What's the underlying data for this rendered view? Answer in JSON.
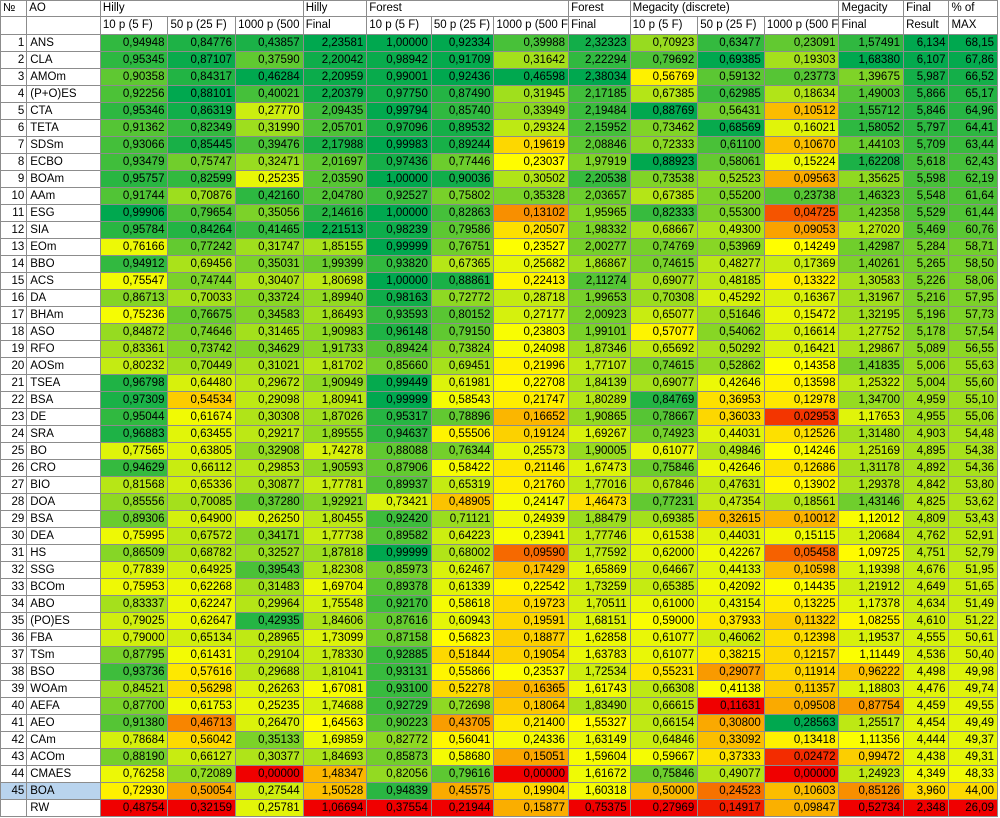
{
  "headers": {
    "no": "№",
    "ao": "AO",
    "hilly": "Hilly",
    "hilly_final_1": "Hilly",
    "hilly_final_2": "Final",
    "forest": "Forest",
    "forest_final_1": "Forest",
    "forest_final_2": "Final",
    "megacity": "Megacity (discrete)",
    "megacity_final_1": "Megacity",
    "megacity_final_2": "Final",
    "final_result_1": "Final",
    "final_result_2": "Result",
    "pct_max_1": "% of",
    "pct_max_2": "MAX",
    "sub": [
      "10 p (5 F)",
      "50 p (25 F)",
      "1000 p (500 F)"
    ]
  },
  "rows": [
    {
      "n": "1",
      "ao": "ANS",
      "v": [
        "0,94948",
        "0,84776",
        "0,43857",
        "2,23581",
        "1,00000",
        "0,92334",
        "0,39988",
        "2,32323",
        "0,70923",
        "0,63477",
        "0,23091",
        "1,57491",
        "6,134",
        "68,15"
      ]
    },
    {
      "n": "2",
      "ao": "CLA",
      "v": [
        "0,95345",
        "0,87107",
        "0,37590",
        "2,20042",
        "0,98942",
        "0,91709",
        "0,31642",
        "2,22294",
        "0,79692",
        "0,69385",
        "0,19303",
        "1,68380",
        "6,107",
        "67,86"
      ]
    },
    {
      "n": "3",
      "ao": "AMOm",
      "v": [
        "0,90358",
        "0,84317",
        "0,46284",
        "2,20959",
        "0,99001",
        "0,92436",
        "0,46598",
        "2,38034",
        "0,56769",
        "0,59132",
        "0,23773",
        "1,39675",
        "5,987",
        "66,52"
      ]
    },
    {
      "n": "4",
      "ao": "(P+O)ES",
      "v": [
        "0,92256",
        "0,88101",
        "0,40021",
        "2,20379",
        "0,97750",
        "0,87490",
        "0,31945",
        "2,17185",
        "0,67385",
        "0,62985",
        "0,18634",
        "1,49003",
        "5,866",
        "65,17"
      ]
    },
    {
      "n": "5",
      "ao": "CTA",
      "v": [
        "0,95346",
        "0,86319",
        "0,27770",
        "2,09435",
        "0,99794",
        "0,85740",
        "0,33949",
        "2,19484",
        "0,88769",
        "0,56431",
        "0,10512",
        "1,55712",
        "5,846",
        "64,96"
      ]
    },
    {
      "n": "6",
      "ao": "TETA",
      "v": [
        "0,91362",
        "0,82349",
        "0,31990",
        "2,05701",
        "0,97096",
        "0,89532",
        "0,29324",
        "2,15952",
        "0,73462",
        "0,68569",
        "0,16021",
        "1,58052",
        "5,797",
        "64,41"
      ]
    },
    {
      "n": "7",
      "ao": "SDSm",
      "v": [
        "0,93066",
        "0,85445",
        "0,39476",
        "2,17988",
        "0,99983",
        "0,89244",
        "0,19619",
        "2,08846",
        "0,72333",
        "0,61100",
        "0,10670",
        "1,44103",
        "5,709",
        "63,44"
      ]
    },
    {
      "n": "8",
      "ao": "ECBO",
      "v": [
        "0,93479",
        "0,75747",
        "0,32471",
        "2,01697",
        "0,97436",
        "0,77446",
        "0,23037",
        "1,97919",
        "0,88923",
        "0,58061",
        "0,15224",
        "1,62208",
        "5,618",
        "62,43"
      ]
    },
    {
      "n": "9",
      "ao": "BOAm",
      "v": [
        "0,95757",
        "0,82599",
        "0,25235",
        "2,03590",
        "1,00000",
        "0,90036",
        "0,30502",
        "2,20538",
        "0,73538",
        "0,52523",
        "0,09563",
        "1,35625",
        "5,598",
        "62,19"
      ]
    },
    {
      "n": "10",
      "ao": "AAm",
      "v": [
        "0,91744",
        "0,70876",
        "0,42160",
        "2,04780",
        "0,92527",
        "0,75802",
        "0,35328",
        "2,03657",
        "0,67385",
        "0,55200",
        "0,23738",
        "1,46323",
        "5,548",
        "61,64"
      ]
    },
    {
      "n": "11",
      "ao": "ESG",
      "v": [
        "0,99906",
        "0,79654",
        "0,35056",
        "2,14616",
        "1,00000",
        "0,82863",
        "0,13102",
        "1,95965",
        "0,82333",
        "0,55300",
        "0,04725",
        "1,42358",
        "5,529",
        "61,44"
      ]
    },
    {
      "n": "12",
      "ao": "SIA",
      "v": [
        "0,95784",
        "0,84264",
        "0,41465",
        "2,21513",
        "0,98239",
        "0,79586",
        "0,20507",
        "1,98332",
        "0,68667",
        "0,49300",
        "0,09053",
        "1,27020",
        "5,469",
        "60,76"
      ]
    },
    {
      "n": "13",
      "ao": "EOm",
      "v": [
        "0,76166",
        "0,77242",
        "0,31747",
        "1,85155",
        "0,99999",
        "0,76751",
        "0,23527",
        "2,00277",
        "0,74769",
        "0,53969",
        "0,14249",
        "1,42987",
        "5,284",
        "58,71"
      ]
    },
    {
      "n": "14",
      "ao": "BBO",
      "v": [
        "0,94912",
        "0,69456",
        "0,35031",
        "1,99399",
        "0,93820",
        "0,67365",
        "0,25682",
        "1,86867",
        "0,74615",
        "0,48277",
        "0,17369",
        "1,40261",
        "5,265",
        "58,50"
      ]
    },
    {
      "n": "15",
      "ao": "ACS",
      "v": [
        "0,75547",
        "0,74744",
        "0,30407",
        "1,80698",
        "1,00000",
        "0,88861",
        "0,22413",
        "2,11274",
        "0,69077",
        "0,48185",
        "0,13322",
        "1,30583",
        "5,226",
        "58,06"
      ]
    },
    {
      "n": "16",
      "ao": "DA",
      "v": [
        "0,86713",
        "0,70033",
        "0,33724",
        "1,89940",
        "0,98163",
        "0,72772",
        "0,28718",
        "1,99653",
        "0,70308",
        "0,45292",
        "0,16367",
        "1,31967",
        "5,216",
        "57,95"
      ]
    },
    {
      "n": "17",
      "ao": "BHAm",
      "v": [
        "0,75236",
        "0,76675",
        "0,34583",
        "1,86493",
        "0,93593",
        "0,80152",
        "0,27177",
        "2,00923",
        "0,65077",
        "0,51646",
        "0,15472",
        "1,32195",
        "5,196",
        "57,73"
      ]
    },
    {
      "n": "18",
      "ao": "ASO",
      "v": [
        "0,84872",
        "0,74646",
        "0,31465",
        "1,90983",
        "0,96148",
        "0,79150",
        "0,23803",
        "1,99101",
        "0,57077",
        "0,54062",
        "0,16614",
        "1,27752",
        "5,178",
        "57,54"
      ]
    },
    {
      "n": "19",
      "ao": "RFO",
      "v": [
        "0,83361",
        "0,73742",
        "0,34629",
        "1,91733",
        "0,89424",
        "0,73824",
        "0,24098",
        "1,87346",
        "0,65692",
        "0,50292",
        "0,16421",
        "1,29867",
        "5,089",
        "56,55"
      ]
    },
    {
      "n": "20",
      "ao": "AOSm",
      "v": [
        "0,80232",
        "0,70449",
        "0,31021",
        "1,81702",
        "0,85660",
        "0,69451",
        "0,21996",
        "1,77107",
        "0,74615",
        "0,52862",
        "0,14358",
        "1,41835",
        "5,006",
        "55,63"
      ]
    },
    {
      "n": "21",
      "ao": "TSEA",
      "v": [
        "0,96798",
        "0,64480",
        "0,29672",
        "1,90949",
        "0,99449",
        "0,61981",
        "0,22708",
        "1,84139",
        "0,69077",
        "0,42646",
        "0,13598",
        "1,25322",
        "5,004",
        "55,60"
      ]
    },
    {
      "n": "22",
      "ao": "BSA",
      "v": [
        "0,97309",
        "0,54534",
        "0,29098",
        "1,80941",
        "0,99999",
        "0,58543",
        "0,21747",
        "1,80289",
        "0,84769",
        "0,36953",
        "0,12978",
        "1,34700",
        "4,959",
        "55,10"
      ]
    },
    {
      "n": "23",
      "ao": "DE",
      "v": [
        "0,95044",
        "0,61674",
        "0,30308",
        "1,87026",
        "0,95317",
        "0,78896",
        "0,16652",
        "1,90865",
        "0,78667",
        "0,36033",
        "0,02953",
        "1,17653",
        "4,955",
        "55,06"
      ]
    },
    {
      "n": "24",
      "ao": "SRA",
      "v": [
        "0,96883",
        "0,63455",
        "0,29217",
        "1,89555",
        "0,94637",
        "0,55506",
        "0,19124",
        "1,69267",
        "0,74923",
        "0,44031",
        "0,12526",
        "1,31480",
        "4,903",
        "54,48"
      ]
    },
    {
      "n": "25",
      "ao": "BO",
      "v": [
        "0,77565",
        "0,63805",
        "0,32908",
        "1,74278",
        "0,88088",
        "0,76344",
        "0,25573",
        "1,90005",
        "0,61077",
        "0,49846",
        "0,14246",
        "1,25169",
        "4,895",
        "54,38"
      ]
    },
    {
      "n": "26",
      "ao": "CRO",
      "v": [
        "0,94629",
        "0,66112",
        "0,29853",
        "1,90593",
        "0,87906",
        "0,58422",
        "0,21146",
        "1,67473",
        "0,75846",
        "0,42646",
        "0,12686",
        "1,31178",
        "4,892",
        "54,36"
      ]
    },
    {
      "n": "27",
      "ao": "BIO",
      "v": [
        "0,81568",
        "0,65336",
        "0,30877",
        "1,77781",
        "0,89937",
        "0,65319",
        "0,21760",
        "1,77016",
        "0,67846",
        "0,47631",
        "0,13902",
        "1,29378",
        "4,842",
        "53,80"
      ]
    },
    {
      "n": "28",
      "ao": "DOA",
      "v": [
        "0,85556",
        "0,70085",
        "0,37280",
        "1,92921",
        "0,73421",
        "0,48905",
        "0,24147",
        "1,46473",
        "0,77231",
        "0,47354",
        "0,18561",
        "1,43146",
        "4,825",
        "53,62"
      ]
    },
    {
      "n": "29",
      "ao": "BSA",
      "v": [
        "0,89306",
        "0,64900",
        "0,26250",
        "1,80455",
        "0,92420",
        "0,71121",
        "0,24939",
        "1,88479",
        "0,69385",
        "0,32615",
        "0,10012",
        "1,12012",
        "4,809",
        "53,43"
      ]
    },
    {
      "n": "30",
      "ao": "DEA",
      "v": [
        "0,75995",
        "0,67572",
        "0,34171",
        "1,77738",
        "0,89582",
        "0,64223",
        "0,23941",
        "1,77746",
        "0,61538",
        "0,44031",
        "0,15115",
        "1,20684",
        "4,762",
        "52,91"
      ]
    },
    {
      "n": "31",
      "ao": "HS",
      "v": [
        "0,86509",
        "0,68782",
        "0,32527",
        "1,87818",
        "0,99999",
        "0,68002",
        "0,09590",
        "1,77592",
        "0,62000",
        "0,42267",
        "0,05458",
        "1,09725",
        "4,751",
        "52,79"
      ]
    },
    {
      "n": "32",
      "ao": "SSG",
      "v": [
        "0,77839",
        "0,64925",
        "0,39543",
        "1,82308",
        "0,85973",
        "0,62467",
        "0,17429",
        "1,65869",
        "0,64667",
        "0,44133",
        "0,10598",
        "1,19398",
        "4,676",
        "51,95"
      ]
    },
    {
      "n": "33",
      "ao": "BCOm",
      "v": [
        "0,75953",
        "0,62268",
        "0,31483",
        "1,69704",
        "0,89378",
        "0,61339",
        "0,22542",
        "1,73259",
        "0,65385",
        "0,42092",
        "0,14435",
        "1,21912",
        "4,649",
        "51,65"
      ]
    },
    {
      "n": "34",
      "ao": "ABO",
      "v": [
        "0,83337",
        "0,62247",
        "0,29964",
        "1,75548",
        "0,92170",
        "0,58618",
        "0,19723",
        "1,70511",
        "0,61000",
        "0,43154",
        "0,13225",
        "1,17378",
        "4,634",
        "51,49"
      ]
    },
    {
      "n": "35",
      "ao": "(PO)ES",
      "v": [
        "0,79025",
        "0,62647",
        "0,42935",
        "1,84606",
        "0,87616",
        "0,60943",
        "0,19591",
        "1,68151",
        "0,59000",
        "0,37933",
        "0,11322",
        "1,08255",
        "4,610",
        "51,22"
      ]
    },
    {
      "n": "36",
      "ao": "FBA",
      "v": [
        "0,79000",
        "0,65134",
        "0,28965",
        "1,73099",
        "0,87158",
        "0,56823",
        "0,18877",
        "1,62858",
        "0,61077",
        "0,46062",
        "0,12398",
        "1,19537",
        "4,555",
        "50,61"
      ]
    },
    {
      "n": "37",
      "ao": "TSm",
      "v": [
        "0,87795",
        "0,61431",
        "0,29104",
        "1,78330",
        "0,92885",
        "0,51844",
        "0,19054",
        "1,63783",
        "0,61077",
        "0,38215",
        "0,12157",
        "1,11449",
        "4,536",
        "50,40"
      ]
    },
    {
      "n": "38",
      "ao": "BSO",
      "v": [
        "0,93736",
        "0,57616",
        "0,29688",
        "1,81041",
        "0,93131",
        "0,55866",
        "0,23537",
        "1,72534",
        "0,55231",
        "0,29077",
        "0,11914",
        "0,96222",
        "4,498",
        "49,98"
      ]
    },
    {
      "n": "39",
      "ao": "WOAm",
      "v": [
        "0,84521",
        "0,56298",
        "0,26263",
        "1,67081",
        "0,93100",
        "0,52278",
        "0,16365",
        "1,61743",
        "0,66308",
        "0,41138",
        "0,11357",
        "1,18803",
        "4,476",
        "49,74"
      ]
    },
    {
      "n": "40",
      "ao": "AEFA",
      "v": [
        "0,87700",
        "0,61753",
        "0,25235",
        "1,74688",
        "0,92729",
        "0,72698",
        "0,18064",
        "1,83490",
        "0,66615",
        "0,11631",
        "0,09508",
        "0,87754",
        "4,459",
        "49,55"
      ]
    },
    {
      "n": "41",
      "ao": "AEO",
      "v": [
        "0,91380",
        "0,46713",
        "0,26470",
        "1,64563",
        "0,90223",
        "0,43705",
        "0,21400",
        "1,55327",
        "0,66154",
        "0,30800",
        "0,28563",
        "1,25517",
        "4,454",
        "49,49"
      ]
    },
    {
      "n": "42",
      "ao": "CAm",
      "v": [
        "0,78684",
        "0,56042",
        "0,35133",
        "1,69859",
        "0,82772",
        "0,56041",
        "0,24336",
        "1,63149",
        "0,64846",
        "0,33092",
        "0,13418",
        "1,11356",
        "4,444",
        "49,37"
      ]
    },
    {
      "n": "43",
      "ao": "ACOm",
      "v": [
        "0,88190",
        "0,66127",
        "0,30377",
        "1,84693",
        "0,85873",
        "0,58680",
        "0,15051",
        "1,59604",
        "0,59667",
        "0,37333",
        "0,02472",
        "0,99472",
        "4,438",
        "49,31"
      ]
    },
    {
      "n": "44",
      "ao": "CMAES",
      "v": [
        "0,76258",
        "0,72089",
        "0,00000",
        "1,48347",
        "0,82056",
        "0,79616",
        "0,00000",
        "1,61672",
        "0,75846",
        "0,49077",
        "0,00000",
        "1,24923",
        "4,349",
        "48,33"
      ]
    },
    {
      "n": "45",
      "ao": "BOA",
      "v": [
        "0,72930",
        "0,50054",
        "0,27544",
        "1,50528",
        "0,94839",
        "0,45575",
        "0,19904",
        "1,60318",
        "0,50000",
        "0,24523",
        "0,10603",
        "0,85126",
        "3,960",
        "44,00"
      ]
    },
    {
      "n": "",
      "ao": "RW",
      "v": [
        "0,48754",
        "0,32159",
        "0,25781",
        "1,06694",
        "0,37554",
        "0,21944",
        "0,15877",
        "0,75375",
        "0,27969",
        "0,14917",
        "0,09847",
        "0,52734",
        "2,348",
        "26,09"
      ]
    }
  ],
  "selected_row": 45,
  "colors": {
    "scale_low": "#f00000",
    "scale_mid": "#ffff00",
    "scale_high": "#00a84f",
    "selected_row_bg": "#b9d4ee",
    "grid": "#8c8c8c"
  }
}
